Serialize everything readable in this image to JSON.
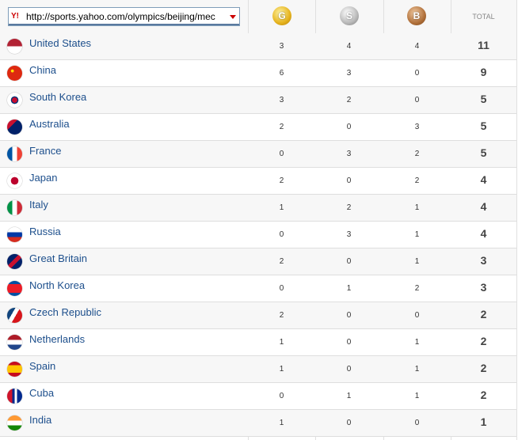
{
  "header": {
    "url": "http://sports.yahoo.com/olympics/beijing/mec",
    "medals": [
      "G",
      "S",
      "B"
    ],
    "total": "TOTAL"
  },
  "table": {
    "rows": [
      {
        "country": "United States",
        "gold": 3,
        "silver": 4,
        "bronze": 4,
        "total": 11
      },
      {
        "country": "China",
        "gold": 6,
        "silver": 3,
        "bronze": 0,
        "total": 9
      },
      {
        "country": "South Korea",
        "gold": 3,
        "silver": 2,
        "bronze": 0,
        "total": 5
      },
      {
        "country": "Australia",
        "gold": 2,
        "silver": 0,
        "bronze": 3,
        "total": 5
      },
      {
        "country": "France",
        "gold": 0,
        "silver": 3,
        "bronze": 2,
        "total": 5
      },
      {
        "country": "Japan",
        "gold": 2,
        "silver": 0,
        "bronze": 2,
        "total": 4
      },
      {
        "country": "Italy",
        "gold": 1,
        "silver": 2,
        "bronze": 1,
        "total": 4
      },
      {
        "country": "Russia",
        "gold": 0,
        "silver": 3,
        "bronze": 1,
        "total": 4
      },
      {
        "country": "Great Britain",
        "gold": 2,
        "silver": 0,
        "bronze": 1,
        "total": 3
      },
      {
        "country": "North Korea",
        "gold": 0,
        "silver": 1,
        "bronze": 2,
        "total": 3
      },
      {
        "country": "Czech Republic",
        "gold": 2,
        "silver": 0,
        "bronze": 0,
        "total": 2
      },
      {
        "country": "Netherlands",
        "gold": 1,
        "silver": 0,
        "bronze": 1,
        "total": 2
      },
      {
        "country": "Spain",
        "gold": 1,
        "silver": 0,
        "bronze": 1,
        "total": 2
      },
      {
        "country": "Cuba",
        "gold": 0,
        "silver": 1,
        "bronze": 1,
        "total": 2
      },
      {
        "country": "India",
        "gold": 1,
        "silver": 0,
        "bronze": 0,
        "total": 1
      }
    ]
  }
}
